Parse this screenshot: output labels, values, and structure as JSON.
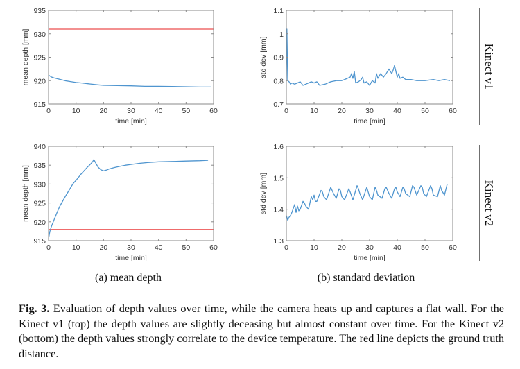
{
  "figure": {
    "row_labels": [
      "Kinect v1",
      "Kinect v2"
    ],
    "subcaptions": [
      "(a) mean depth",
      "(b) standard deviation"
    ],
    "caption_label": "Fig. 3.",
    "caption_text": "Evaluation of depth values over time, while the camera heats up and captures a flat wall. For the Kinect v1 (top) the depth values are slightly deceasing but almost constant over time. For the Kinect v2 (bottom) the depth values strongly correlate to the device temperature. The red line depicts the ground truth distance."
  },
  "colors": {
    "series": "#4f95cf",
    "ground_truth": "#ef6b6b",
    "axes": "#8a8a8a"
  },
  "chart_data": [
    {
      "id": "v1-mean",
      "type": "line",
      "row": "Kinect v1",
      "title": "",
      "xlabel": "time [min]",
      "ylabel": "mean depth [mm]",
      "xlim": [
        0,
        60
      ],
      "ylim": [
        915,
        935
      ],
      "xticks": [
        0,
        10,
        20,
        30,
        40,
        50,
        60
      ],
      "yticks": [
        915,
        920,
        925,
        930,
        935
      ],
      "grid": false,
      "hlines": [
        {
          "name": "ground truth",
          "y": 931,
          "color": "#ef6b6b"
        }
      ],
      "series": [
        {
          "name": "mean depth",
          "color": "#4f95cf",
          "x": [
            0,
            1,
            2,
            4,
            6,
            8,
            10,
            12,
            15,
            18,
            20,
            25,
            30,
            35,
            40,
            45,
            50,
            55,
            59
          ],
          "y": [
            921.2,
            920.8,
            920.6,
            920.3,
            920.0,
            919.8,
            919.6,
            919.5,
            919.3,
            919.1,
            919.0,
            918.95,
            918.9,
            918.8,
            918.8,
            918.75,
            918.7,
            918.65,
            918.65
          ]
        }
      ]
    },
    {
      "id": "v1-std",
      "type": "line",
      "row": "Kinect v1",
      "title": "",
      "xlabel": "time [min]",
      "ylabel": "std dev [mm]",
      "xlim": [
        0,
        60
      ],
      "ylim": [
        0.7,
        1.1
      ],
      "xticks": [
        0,
        10,
        20,
        30,
        40,
        50,
        60
      ],
      "yticks": [
        0.7,
        0.8,
        0.9,
        1.0,
        1.1
      ],
      "ytick_labels": [
        "0.7",
        "0.8",
        "0.9",
        "1",
        "1.1"
      ],
      "grid": false,
      "hlines": [],
      "series": [
        {
          "name": "std dev",
          "color": "#4f95cf",
          "x": [
            0,
            0.2,
            0.5,
            1,
            1.5,
            2,
            3,
            4,
            5,
            6,
            7,
            8,
            9,
            10,
            11,
            12,
            14,
            16,
            18,
            20,
            21,
            22,
            23,
            23.5,
            24,
            24.5,
            25,
            26,
            27,
            27.5,
            28,
            29,
            30,
            31,
            32,
            32.5,
            33,
            34,
            35,
            36,
            37,
            38,
            38.5,
            39,
            40,
            40.5,
            41,
            42,
            43,
            45,
            47,
            50,
            53,
            55,
            57,
            59
          ],
          "y": [
            0.8,
            1.02,
            0.8,
            0.795,
            0.785,
            0.79,
            0.785,
            0.79,
            0.795,
            0.78,
            0.785,
            0.79,
            0.795,
            0.79,
            0.795,
            0.78,
            0.785,
            0.795,
            0.8,
            0.8,
            0.805,
            0.81,
            0.815,
            0.83,
            0.81,
            0.84,
            0.79,
            0.795,
            0.805,
            0.815,
            0.79,
            0.795,
            0.78,
            0.8,
            0.79,
            0.83,
            0.81,
            0.83,
            0.815,
            0.83,
            0.85,
            0.83,
            0.845,
            0.865,
            0.815,
            0.83,
            0.81,
            0.815,
            0.805,
            0.805,
            0.8,
            0.8,
            0.805,
            0.8,
            0.805,
            0.8
          ]
        }
      ]
    },
    {
      "id": "v2-mean",
      "type": "line",
      "row": "Kinect v2",
      "title": "",
      "xlabel": "time [min]",
      "ylabel": "mean depth [mm]",
      "xlim": [
        0,
        60
      ],
      "ylim": [
        915,
        940
      ],
      "xticks": [
        0,
        10,
        20,
        30,
        40,
        50,
        60
      ],
      "yticks": [
        915,
        920,
        925,
        930,
        935,
        940
      ],
      "grid": false,
      "hlines": [
        {
          "name": "ground truth",
          "y": 918,
          "color": "#ef6b6b"
        }
      ],
      "series": [
        {
          "name": "mean depth",
          "color": "#4f95cf",
          "x": [
            0,
            0.5,
            1,
            2,
            3,
            4,
            5,
            6,
            7,
            8,
            9,
            10,
            11,
            12,
            13,
            14,
            15,
            16,
            16.5,
            17,
            18,
            19,
            20,
            21,
            22,
            24,
            26,
            28,
            30,
            33,
            36,
            40,
            45,
            50,
            55,
            58
          ],
          "y": [
            915.5,
            917.5,
            918.7,
            920.5,
            922.3,
            924.0,
            925.3,
            926.6,
            927.8,
            929.0,
            930.2,
            931.0,
            931.9,
            932.8,
            933.6,
            934.4,
            935.1,
            935.9,
            936.5,
            935.8,
            934.5,
            933.8,
            933.5,
            933.7,
            934.0,
            934.4,
            934.7,
            935.0,
            935.2,
            935.5,
            935.7,
            935.9,
            936.0,
            936.1,
            936.2,
            936.3
          ]
        }
      ]
    },
    {
      "id": "v2-std",
      "type": "line",
      "row": "Kinect v2",
      "title": "",
      "xlabel": "time [min]",
      "ylabel": "std dev [mm]",
      "xlim": [
        0,
        60
      ],
      "ylim": [
        1.3,
        1.6
      ],
      "xticks": [
        0,
        10,
        20,
        30,
        40,
        50,
        60
      ],
      "yticks": [
        1.3,
        1.4,
        1.5,
        1.6
      ],
      "ytick_labels": [
        "1.3",
        "1.4",
        "1.5",
        "1.6"
      ],
      "grid": false,
      "hlines": [],
      "series": [
        {
          "name": "std dev",
          "color": "#4f95cf",
          "x": [
            0,
            0.5,
            1,
            1.5,
            2,
            3,
            3.5,
            4,
            4.5,
            5,
            6,
            6.5,
            7,
            7.5,
            8,
            9,
            9.5,
            10,
            10.5,
            11,
            12.5,
            13,
            13.5,
            14.5,
            16,
            16.5,
            17,
            18,
            19,
            19.5,
            20,
            21,
            22.5,
            23,
            24,
            25.5,
            26,
            26.5,
            27.5,
            29,
            29.5,
            30,
            31,
            32,
            32.5,
            33,
            34.5,
            35.5,
            36,
            37,
            38,
            39,
            39.5,
            40,
            41,
            42,
            42.5,
            43,
            44.5,
            45.5,
            46,
            47,
            48.5,
            49,
            49.5,
            50.5,
            52,
            52.5,
            53,
            54.5,
            55.5,
            56,
            57,
            58
          ],
          "y": [
            1.38,
            1.365,
            1.375,
            1.38,
            1.39,
            1.415,
            1.39,
            1.41,
            1.395,
            1.4,
            1.425,
            1.42,
            1.41,
            1.405,
            1.4,
            1.44,
            1.43,
            1.445,
            1.425,
            1.425,
            1.46,
            1.455,
            1.44,
            1.43,
            1.47,
            1.46,
            1.45,
            1.435,
            1.465,
            1.46,
            1.44,
            1.43,
            1.465,
            1.455,
            1.43,
            1.475,
            1.465,
            1.45,
            1.43,
            1.47,
            1.455,
            1.44,
            1.43,
            1.47,
            1.46,
            1.445,
            1.435,
            1.465,
            1.47,
            1.45,
            1.435,
            1.465,
            1.47,
            1.455,
            1.44,
            1.47,
            1.465,
            1.45,
            1.44,
            1.475,
            1.47,
            1.445,
            1.475,
            1.47,
            1.45,
            1.44,
            1.475,
            1.465,
            1.445,
            1.44,
            1.475,
            1.46,
            1.445,
            1.48
          ]
        }
      ]
    }
  ]
}
